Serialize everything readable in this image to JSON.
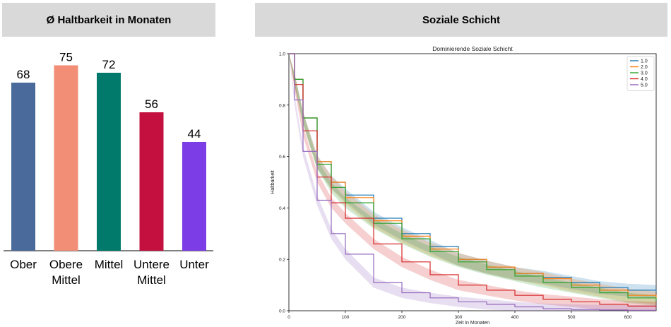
{
  "headers": {
    "left": "Ø Haltbarkeit in Monaten",
    "right": "Soziale Schicht"
  },
  "chart_data": [
    {
      "type": "bar",
      "categories": [
        [
          "Ober"
        ],
        [
          "Obere",
          "Mittel"
        ],
        [
          "Mittel"
        ],
        [
          "Untere",
          "Mittel"
        ],
        [
          "Unter"
        ]
      ],
      "values": [
        68,
        75,
        72,
        56,
        44
      ],
      "colors": [
        "#4a6a9b",
        "#f28e75",
        "#017a6c",
        "#c3103e",
        "#7d3de6"
      ],
      "ylim": [
        0,
        80
      ],
      "title": "",
      "xlabel": "",
      "ylabel": ""
    },
    {
      "type": "line",
      "title": "Dominierende Soziale Schicht",
      "xlabel": "Zeit in Monaten",
      "ylabel": "Haltbarkeit",
      "xlim": [
        0,
        650
      ],
      "ylim": [
        0,
        1.0
      ],
      "xticks": [
        0,
        100,
        200,
        300,
        400,
        500,
        600
      ],
      "yticks": [
        0.0,
        0.2,
        0.4,
        0.6,
        0.8,
        1.0
      ],
      "legend_position": "top-right",
      "confidence_band": true,
      "series": [
        {
          "name": "1.0",
          "color": "#1f77b4",
          "x": [
            0,
            10,
            25,
            50,
            75,
            100,
            150,
            200,
            250,
            300,
            350,
            400,
            450,
            500,
            550,
            600,
            650
          ],
          "y": [
            1.0,
            0.9,
            0.75,
            0.58,
            0.5,
            0.45,
            0.36,
            0.3,
            0.25,
            0.2,
            0.17,
            0.145,
            0.13,
            0.11,
            0.09,
            0.08,
            0.075
          ]
        },
        {
          "name": "2.0",
          "color": "#ff7f0e",
          "x": [
            0,
            10,
            25,
            50,
            75,
            100,
            150,
            200,
            250,
            300,
            350,
            400,
            450,
            500,
            550,
            600,
            650
          ],
          "y": [
            1.0,
            0.9,
            0.75,
            0.58,
            0.5,
            0.44,
            0.35,
            0.29,
            0.24,
            0.2,
            0.17,
            0.145,
            0.125,
            0.1,
            0.08,
            0.06,
            0.05
          ]
        },
        {
          "name": "3.0",
          "color": "#2ca02c",
          "x": [
            0,
            10,
            25,
            50,
            75,
            100,
            150,
            200,
            250,
            300,
            350,
            400,
            450,
            500,
            550,
            600,
            650
          ],
          "y": [
            1.0,
            0.9,
            0.75,
            0.57,
            0.48,
            0.42,
            0.34,
            0.28,
            0.23,
            0.19,
            0.16,
            0.135,
            0.11,
            0.09,
            0.07,
            0.05,
            0.04
          ]
        },
        {
          "name": "4.0",
          "color": "#d62728",
          "x": [
            0,
            10,
            25,
            50,
            75,
            100,
            150,
            200,
            250,
            300,
            350,
            400,
            450,
            500,
            550,
            600,
            650
          ],
          "y": [
            1.0,
            0.88,
            0.7,
            0.52,
            0.42,
            0.36,
            0.26,
            0.19,
            0.14,
            0.1,
            0.08,
            0.06,
            0.045,
            0.035,
            0.025,
            0.018,
            0.015
          ]
        },
        {
          "name": "5.0",
          "color": "#9467bd",
          "x": [
            0,
            10,
            25,
            50,
            75,
            100,
            150,
            200,
            250,
            300,
            350,
            400,
            450,
            500,
            550,
            600,
            650
          ],
          "y": [
            1.0,
            0.82,
            0.62,
            0.43,
            0.3,
            0.22,
            0.11,
            0.07,
            0.05,
            0.035,
            0.025,
            0.015,
            0.008,
            0.005,
            0.003,
            0.002,
            0.002
          ]
        }
      ]
    }
  ]
}
